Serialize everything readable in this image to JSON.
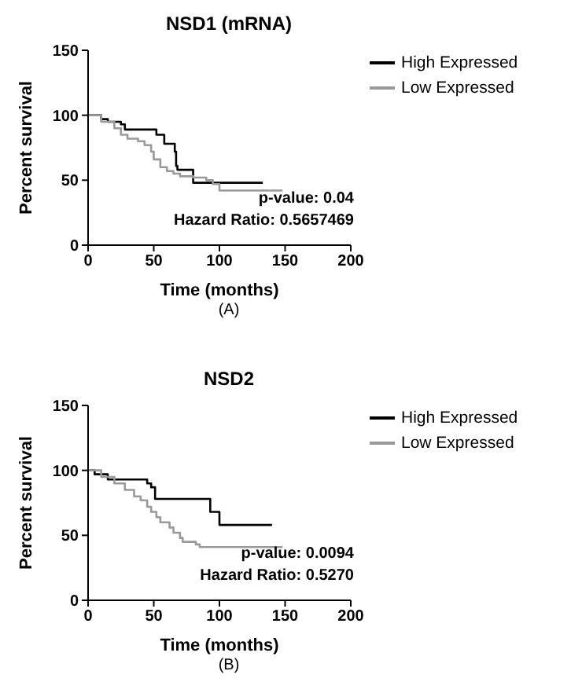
{
  "chart_data": [
    {
      "type": "step",
      "title": "NSD1 (mRNA)",
      "xlabel": "Time (months)",
      "ylabel": "Percent survival",
      "xlim": [
        0,
        200
      ],
      "xticks": [
        0,
        50,
        100,
        150,
        200
      ],
      "ylim": [
        0,
        150
      ],
      "yticks": [
        0,
        50,
        100,
        150
      ],
      "grid": false,
      "legend": "top right",
      "marker": "none",
      "line_style": "solid",
      "annotations": [
        "p-value: 0.04",
        "Hazard Ratio: 0.5657469",
        "(A)"
      ],
      "series": [
        {
          "name": "High Expressed",
          "color": "#000000",
          "x": [
            0,
            10,
            15,
            25,
            28,
            52,
            58,
            66,
            67,
            68,
            80,
            133
          ],
          "values": [
            100,
            97,
            95,
            93,
            89,
            85,
            78,
            72,
            61,
            58,
            48,
            48
          ]
        },
        {
          "name": "Low Expressed",
          "color": "#999999",
          "x": [
            0,
            10,
            20,
            25,
            30,
            38,
            43,
            48,
            50,
            55,
            60,
            65,
            70,
            80,
            90,
            95,
            100,
            148
          ],
          "values": [
            100,
            95,
            90,
            85,
            82,
            80,
            77,
            72,
            66,
            60,
            57,
            55,
            53,
            52,
            50,
            47,
            42,
            42
          ]
        }
      ]
    },
    {
      "type": "step",
      "title": "NSD2",
      "xlabel": "Time (months)",
      "ylabel": "Percent survival",
      "xlim": [
        0,
        200
      ],
      "xticks": [
        0,
        50,
        100,
        150,
        200
      ],
      "ylim": [
        0,
        150
      ],
      "yticks": [
        0,
        50,
        100,
        150
      ],
      "grid": false,
      "legend": "top right",
      "marker": "none",
      "line_style": "solid",
      "annotations": [
        "p-value: 0.0094",
        "Hazard Ratio: 0.5270",
        "(B)"
      ],
      "series": [
        {
          "name": "High Expressed",
          "color": "#000000",
          "x": [
            0,
            5,
            15,
            45,
            48,
            51,
            93,
            100,
            140
          ],
          "values": [
            100,
            97,
            93,
            90,
            87,
            78,
            68,
            58,
            58
          ]
        },
        {
          "name": "Low Expressed",
          "color": "#999999",
          "x": [
            0,
            10,
            20,
            28,
            35,
            40,
            45,
            48,
            52,
            55,
            62,
            65,
            70,
            72,
            82,
            85,
            148
          ],
          "values": [
            100,
            95,
            90,
            85,
            80,
            77,
            72,
            68,
            64,
            60,
            56,
            52,
            48,
            45,
            43,
            41,
            41
          ]
        }
      ]
    }
  ]
}
